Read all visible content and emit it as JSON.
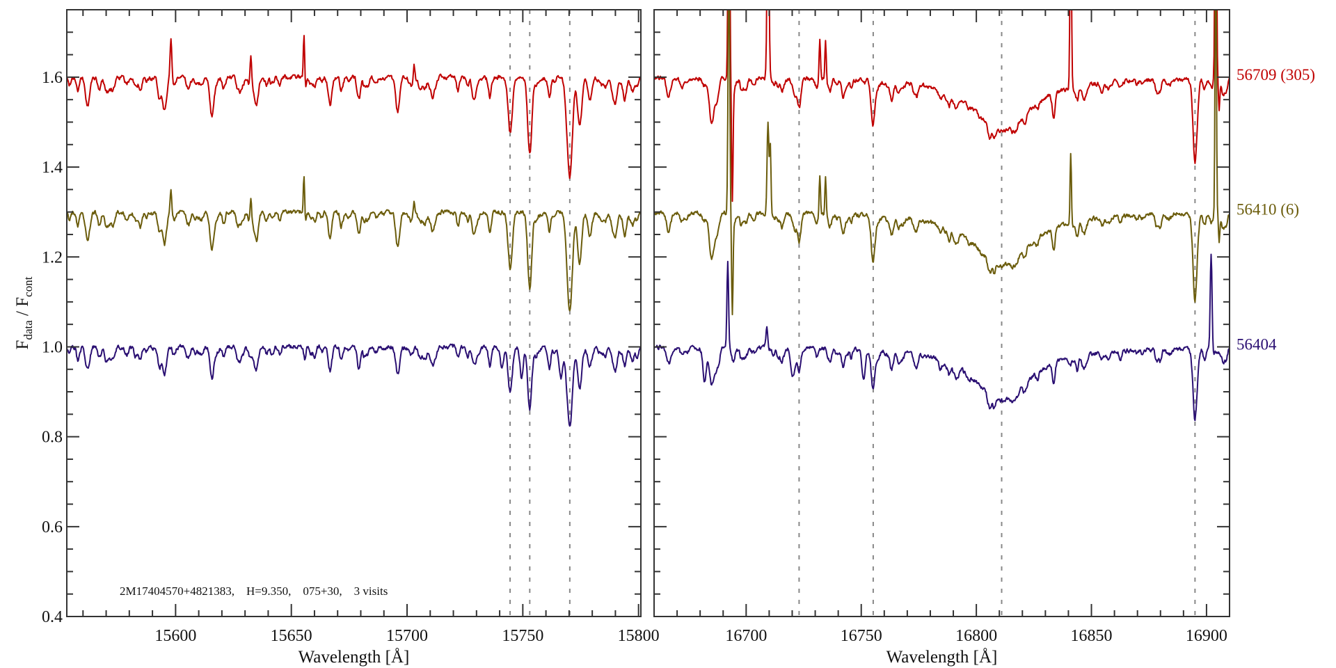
{
  "chart_data": {
    "type": "line",
    "title": "",
    "ylabel": {
      "main": "F",
      "sub": "data",
      "mid": " / F",
      "sub2": "cont"
    },
    "xlabel": "Wavelength [Å]",
    "ylim": [
      0.4,
      1.75
    ],
    "yticks_major": [
      0.4,
      0.6,
      0.8,
      1.0,
      1.2,
      1.4,
      1.6
    ],
    "ytick_labels": [
      "0.4",
      "0.6",
      "0.8",
      "1.0",
      "1.2",
      "1.4",
      "1.6"
    ],
    "y_minor_step": 0.05,
    "annotation": "2M17404570+4821383,    H=9.350,    075+30,    3 visits",
    "series": [
      {
        "label": "56709 (305)",
        "color": "#c00000",
        "continuum": 1.6,
        "line_strength": 1.0
      },
      {
        "label": "56410 (6)",
        "color": "#6b5c0b",
        "continuum": 1.3,
        "line_strength": 1.0
      },
      {
        "label": "56404",
        "color": "#2a0f72",
        "continuum": 1.0,
        "line_strength": 0.8
      }
    ],
    "panels": [
      {
        "xlim": [
          15553,
          15801
        ],
        "xticks_major": [
          15600,
          15650,
          15700,
          15750,
          15800
        ],
        "xtick_labels": [
          "15600",
          "15650",
          "15700",
          "15750",
          "15800"
        ],
        "x_minor_step": 10,
        "reference_lines": [
          15744.5,
          15753,
          15770.3
        ],
        "absorption_lines": [
          [
            15562,
            0.065,
            0.9
          ],
          [
            15567,
            0.03,
            0.7
          ],
          [
            15573,
            0.02,
            0.7
          ],
          [
            15585,
            0.02,
            0.6
          ],
          [
            15595,
            0.065,
            0.8
          ],
          [
            15606,
            0.02,
            0.6
          ],
          [
            15615.6,
            0.07,
            0.8
          ],
          [
            15621,
            0.02,
            0.6
          ],
          [
            15635,
            0.06,
            0.8
          ],
          [
            15645,
            0.02,
            0.6
          ],
          [
            15666.6,
            0.04,
            0.8
          ],
          [
            15672,
            0.02,
            0.6
          ],
          [
            15683,
            0.02,
            0.6
          ],
          [
            15696,
            0.065,
            0.9
          ],
          [
            15711,
            0.02,
            0.6
          ],
          [
            15722,
            0.03,
            0.6
          ],
          [
            15729,
            0.05,
            0.8
          ],
          [
            15736,
            0.02,
            0.6
          ],
          [
            15744.5,
            0.12,
            0.9
          ],
          [
            15753,
            0.17,
            0.9
          ],
          [
            15770.3,
            0.22,
            1.1
          ],
          [
            15774.5,
            0.1,
            0.9
          ],
          [
            15779,
            0.05,
            0.7
          ],
          [
            15789,
            0.04,
            0.8
          ],
          [
            15794,
            0.04,
            0.8
          ]
        ],
        "broad_lines": [],
        "series_features": [
          [
            [
              15598,
              0.09,
              0.35
            ],
            [
              15632.5,
              0.065,
              0.35
            ],
            [
              15655.5,
              0.12,
              0.3
            ],
            [
              15703,
              0.04,
              0.35
            ]
          ],
          [
            [
              15598,
              0.05,
              0.35
            ],
            [
              15632.5,
              0.05,
              0.35
            ],
            [
              15655.5,
              0.1,
              0.3
            ],
            [
              15703,
              0.03,
              0.35
            ]
          ],
          [
            [
              15741,
              -0.05,
              0.7
            ],
            [
              15749.5,
              -0.07,
              0.7
            ],
            [
              15766.4,
              -0.07,
              0.8
            ]
          ]
        ]
      },
      {
        "xlim": [
          16660,
          16910
        ],
        "xticks_major": [
          16700,
          16750,
          16800,
          16850,
          16900
        ],
        "xtick_labels": [
          "16700",
          "16750",
          "16800",
          "16850",
          "16900"
        ],
        "x_minor_step": 10,
        "reference_lines": [
          16723,
          16755.2,
          16811,
          16895
        ],
        "absorption_lines": [
          [
            16666,
            0.03,
            0.8
          ],
          [
            16672,
            0.02,
            0.8
          ],
          [
            16685,
            0.1,
            1.0
          ],
          [
            16700,
            0.02,
            0.7
          ],
          [
            16723,
            0.065,
            0.8
          ],
          [
            16742,
            0.02,
            0.7
          ],
          [
            16755,
            0.085,
            0.8
          ],
          [
            16768,
            0.015,
            0.7
          ],
          [
            16833.5,
            0.04,
            0.6
          ],
          [
            16879,
            0.02,
            0.7
          ],
          [
            16895,
            0.17,
            0.9
          ],
          [
            16907,
            0.02,
            0.7
          ]
        ],
        "broad_lines": [
          [
            16811,
            0.12,
            15
          ]
        ],
        "series_features": [
          [
            [
              16692.5,
              0.6,
              0.35
            ],
            [
              16694,
              -0.25,
              0.3
            ],
            [
              16709.5,
              0.5,
              0.4
            ],
            [
              16732,
              0.09,
              0.3
            ],
            [
              16734.5,
              0.09,
              0.3
            ],
            [
              16841,
              0.4,
              0.35
            ],
            [
              16904,
              0.6,
              0.35
            ],
            [
              16905.5,
              -0.06,
              0.3
            ]
          ],
          [
            [
              16692.5,
              0.6,
              0.35
            ],
            [
              16694,
              -0.2,
              0.3
            ],
            [
              16709.5,
              0.2,
              0.4
            ],
            [
              16710.5,
              0.15,
              0.3
            ],
            [
              16732,
              0.085,
              0.3
            ],
            [
              16734.5,
              0.08,
              0.3
            ],
            [
              16841,
              0.17,
              0.3
            ],
            [
              16904,
              0.6,
              0.3
            ],
            [
              16905.5,
              -0.06,
              0.3
            ]
          ],
          [
            [
              16682,
              -0.06,
              0.7
            ],
            [
              16692,
              0.19,
              0.35
            ],
            [
              16709,
              0.05,
              0.4
            ],
            [
              16720,
              -0.05,
              0.7
            ],
            [
              16751,
              -0.06,
              0.7
            ],
            [
              16902,
              0.23,
              0.4
            ]
          ]
        ]
      }
    ]
  }
}
